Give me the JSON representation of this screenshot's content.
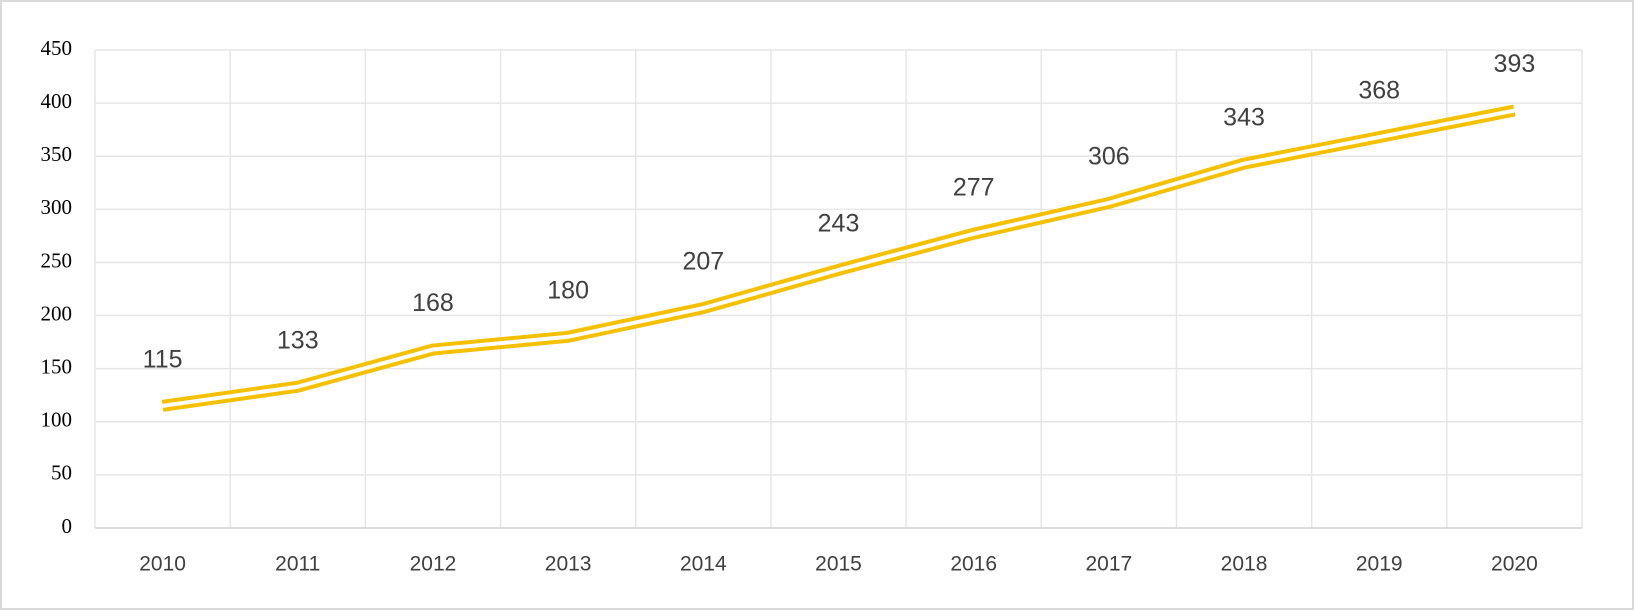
{
  "chart_data": {
    "type": "line",
    "categories": [
      "2010",
      "2011",
      "2012",
      "2013",
      "2014",
      "2015",
      "2016",
      "2017",
      "2018",
      "2019",
      "2020"
    ],
    "values": [
      115,
      133,
      168,
      180,
      207,
      243,
      277,
      306,
      343,
      368,
      393
    ],
    "color": "#f5c000",
    "ylim": [
      0,
      450
    ],
    "yticks": [
      0,
      50,
      100,
      150,
      200,
      250,
      300,
      350,
      400,
      450
    ],
    "grid": true,
    "data_labels": true
  }
}
